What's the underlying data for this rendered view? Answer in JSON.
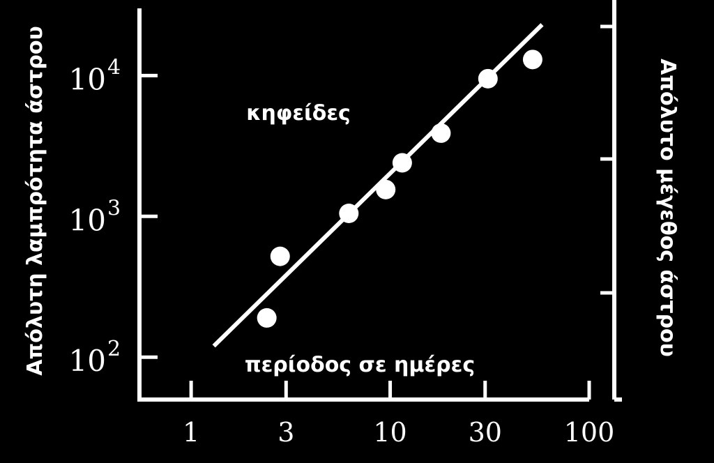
{
  "chart_data": {
    "type": "scatter",
    "xscale": "log",
    "yscale": "log",
    "xlim": [
      0.55,
      100
    ],
    "ylim": [
      50,
      30000
    ],
    "x_ticks": [
      {
        "value": 1,
        "label": "1"
      },
      {
        "value": 3,
        "label": "3"
      },
      {
        "value": 10,
        "label": "10"
      },
      {
        "value": 30,
        "label": "30"
      },
      {
        "value": 100,
        "label": "100"
      }
    ],
    "y_ticks": [
      {
        "value": 100,
        "base": "10",
        "exp": "2"
      },
      {
        "value": 1000,
        "base": "10",
        "exp": "3"
      },
      {
        "value": 10000,
        "base": "10",
        "exp": "4"
      }
    ],
    "ylabel": "Απόλυτη λαμπρότητα άστρου",
    "ylabel_right": "Απόλυτο μέγεθος άστρου",
    "xlabel": "περίοδος σε ημέρες",
    "annotation": "κηφείδες",
    "points": [
      {
        "x": 2.4,
        "y": 190
      },
      {
        "x": 2.8,
        "y": 520
      },
      {
        "x": 6.2,
        "y": 1050
      },
      {
        "x": 9.5,
        "y": 1550
      },
      {
        "x": 11.5,
        "y": 2400
      },
      {
        "x": 18,
        "y": 3900
      },
      {
        "x": 31,
        "y": 9500
      },
      {
        "x": 52,
        "y": 13000
      }
    ],
    "fit_line": {
      "x": [
        1.3,
        58
      ],
      "y": [
        120,
        23000
      ]
    },
    "grid": false,
    "colors": {
      "background": "#000000",
      "foreground": "#ffffff"
    }
  }
}
